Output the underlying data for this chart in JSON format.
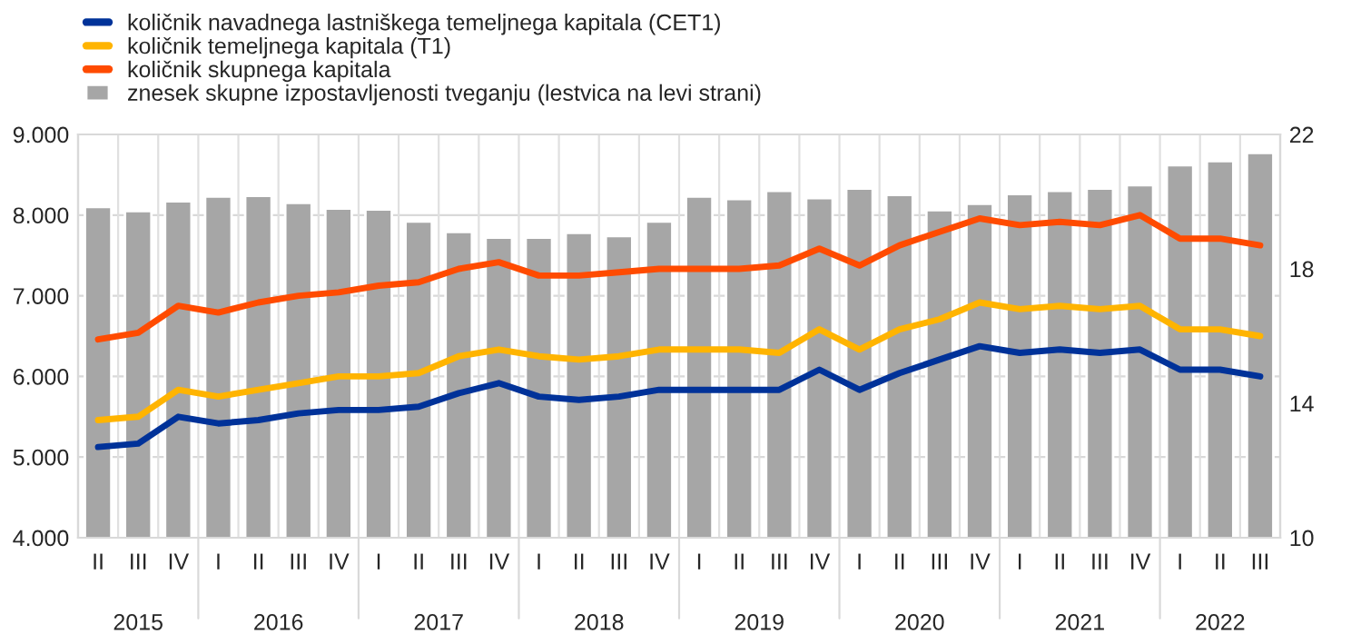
{
  "chart_data": {
    "type": "bar",
    "categories": [
      "II",
      "III",
      "IV",
      "I",
      "II",
      "III",
      "IV",
      "I",
      "II",
      "III",
      "IV",
      "I",
      "II",
      "III",
      "IV",
      "I",
      "II",
      "III",
      "IV",
      "I",
      "II",
      "III",
      "IV",
      "I",
      "II",
      "III",
      "IV",
      "I",
      "II",
      "III"
    ],
    "annotations": [
      "2015",
      "2016",
      "2017",
      "2018",
      "2019",
      "2020",
      "2021",
      "2022"
    ],
    "series": [
      {
        "name": "količnik navadnega lastniškega temeljnega kapitala (CET1)",
        "type": "line",
        "axis": "y2",
        "color": "#003299",
        "values": [
          12.7,
          12.8,
          13.6,
          13.4,
          13.5,
          13.7,
          13.8,
          13.8,
          13.9,
          14.3,
          14.6,
          14.2,
          14.1,
          14.2,
          14.4,
          14.4,
          14.4,
          14.4,
          15.0,
          14.4,
          14.9,
          15.3,
          15.7,
          15.5,
          15.6,
          15.5,
          15.6,
          15.0,
          15.0,
          14.8
        ]
      },
      {
        "name": "količnik temeljnega kapitala (T1)",
        "type": "line",
        "axis": "y2",
        "color": "#ffb400",
        "values": [
          13.5,
          13.6,
          14.4,
          14.2,
          14.4,
          14.6,
          14.8,
          14.8,
          14.9,
          15.4,
          15.6,
          15.4,
          15.3,
          15.4,
          15.6,
          15.6,
          15.6,
          15.5,
          16.2,
          15.6,
          16.2,
          16.5,
          17.0,
          16.8,
          16.9,
          16.8,
          16.9,
          16.2,
          16.2,
          16.0
        ]
      },
      {
        "name": "količnik skupnega kapitala",
        "type": "line",
        "axis": "y2",
        "color": "#ff4b00",
        "values": [
          15.9,
          16.1,
          16.9,
          16.7,
          17.0,
          17.2,
          17.3,
          17.5,
          17.6,
          18.0,
          18.2,
          17.8,
          17.8,
          17.9,
          18.0,
          18.0,
          18.0,
          18.1,
          18.6,
          18.1,
          18.7,
          19.1,
          19.5,
          19.3,
          19.4,
          19.3,
          19.6,
          18.9,
          18.9,
          18.7
        ]
      },
      {
        "name": "znesek skupne izpostavljenosti tveganju (lestvica na levi strani)",
        "axis": "y",
        "color": "#a6a6a6",
        "values": [
          8100,
          8050,
          8170,
          8230,
          8240,
          8150,
          8080,
          8070,
          7920,
          7790,
          7720,
          7720,
          7780,
          7740,
          7920,
          8230,
          8200,
          8300,
          8210,
          8330,
          8250,
          8060,
          8140,
          8260,
          8300,
          8330,
          8370,
          8620,
          8670,
          8770
        ]
      }
    ],
    "ylim": [
      4000,
      9000
    ],
    "yticks": [
      {
        "value": 4000,
        "label": "4.000"
      },
      {
        "value": 5000,
        "label": "5.000"
      },
      {
        "value": 6000,
        "label": "6.000"
      },
      {
        "value": 7000,
        "label": "7.000"
      },
      {
        "value": 8000,
        "label": "8.000"
      },
      {
        "value": 9000,
        "label": "9.000"
      }
    ],
    "y2lim": [
      10,
      22
    ],
    "y2ticks": [
      10,
      14,
      18,
      22
    ],
    "grid": true,
    "legend": "top left",
    "line_style": "solid",
    "marker": "none"
  }
}
